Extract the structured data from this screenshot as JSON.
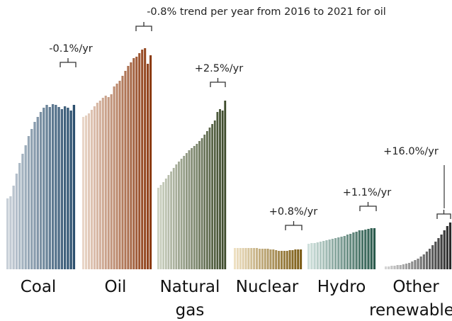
{
  "chart_data": {
    "type": "bar",
    "grid": false,
    "legend": "none",
    "groups": [
      {
        "name": "Coal",
        "label_lines": [
          "Coal"
        ],
        "annotation": "-0.1%/yr",
        "values": [
          100,
          103,
          118,
          135,
          150,
          163,
          175,
          188,
          198,
          208,
          215,
          222,
          228,
          232,
          229,
          233,
          232,
          229,
          226,
          230,
          228,
          224,
          232
        ],
        "colors": [
          "#c8d0d8",
          "#2b4f6e"
        ]
      },
      {
        "name": "Oil",
        "label_lines": [
          "Oil"
        ],
        "annotation": "-0.8% trend per year from 2016 to 2021 for oil",
        "values": [
          215,
          217,
          220,
          225,
          230,
          235,
          238,
          242,
          245,
          243,
          247,
          258,
          262,
          266,
          273,
          280,
          287,
          292,
          298,
          300,
          305,
          310,
          312,
          290,
          302
        ],
        "colors": [
          "#e9d6c8",
          "#8c3b12"
        ]
      },
      {
        "name": "Natural gas",
        "label_lines": [
          "Natural",
          "gas"
        ],
        "annotation": "+2.5%/yr",
        "values": [
          115,
          119,
          123,
          128,
          133,
          138,
          143,
          148,
          152,
          156,
          160,
          164,
          168,
          171,
          174,
          177,
          181,
          185,
          190,
          195,
          200,
          205,
          210,
          222,
          226,
          224,
          238
        ],
        "colors": [
          "#cdd2c2",
          "#3c4a2a"
        ]
      },
      {
        "name": "Nuclear",
        "label_lines": [
          "Nuclear"
        ],
        "annotation": "+0.8%/yr",
        "values": [
          30,
          30,
          30,
          30,
          30,
          30,
          30,
          30,
          30,
          29,
          29,
          29,
          29,
          28,
          28,
          27,
          26,
          26,
          26,
          26,
          27,
          27,
          28,
          28,
          28
        ],
        "colors": [
          "#eee0c2",
          "#7a5a12"
        ]
      },
      {
        "name": "Hydro",
        "label_lines": [
          "Hydro"
        ],
        "annotation": "+1.1%/yr",
        "values": [
          36,
          37,
          37,
          38,
          39,
          40,
          41,
          42,
          43,
          44,
          45,
          46,
          47,
          49,
          50,
          52,
          53,
          55,
          55,
          56,
          57,
          58,
          58
        ],
        "colors": [
          "#cfe0dc",
          "#2a5a4c"
        ]
      },
      {
        "name": "Other renewables",
        "label_lines": [
          "Other",
          "renewables"
        ],
        "annotation": "+16.0%/yr",
        "values": [
          4,
          4,
          5,
          5,
          6,
          6,
          7,
          8,
          9,
          11,
          13,
          15,
          18,
          21,
          25,
          29,
          34,
          39,
          44,
          49,
          55,
          61,
          66
        ],
        "colors": [
          "#d5d5d5",
          "#2a2a2a"
        ]
      }
    ]
  }
}
